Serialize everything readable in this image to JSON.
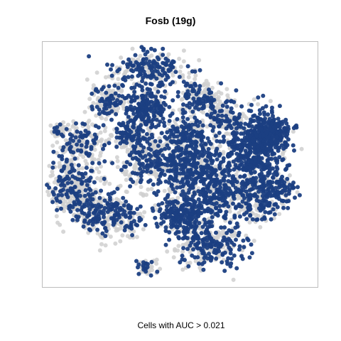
{
  "chart_data": {
    "type": "scatter",
    "title": "Fosb (19g)",
    "xlabel": "Cells with AUC > 0.021",
    "ylabel": "",
    "grid": false,
    "legend": "none",
    "point_colors": {
      "above_threshold": "#1b3f82",
      "below_threshold": "#cfcfcf"
    },
    "series": [
      {
        "name": "Cells with AUC > 0.021",
        "role": "above_threshold"
      },
      {
        "role": "below_threshold"
      }
    ]
  }
}
